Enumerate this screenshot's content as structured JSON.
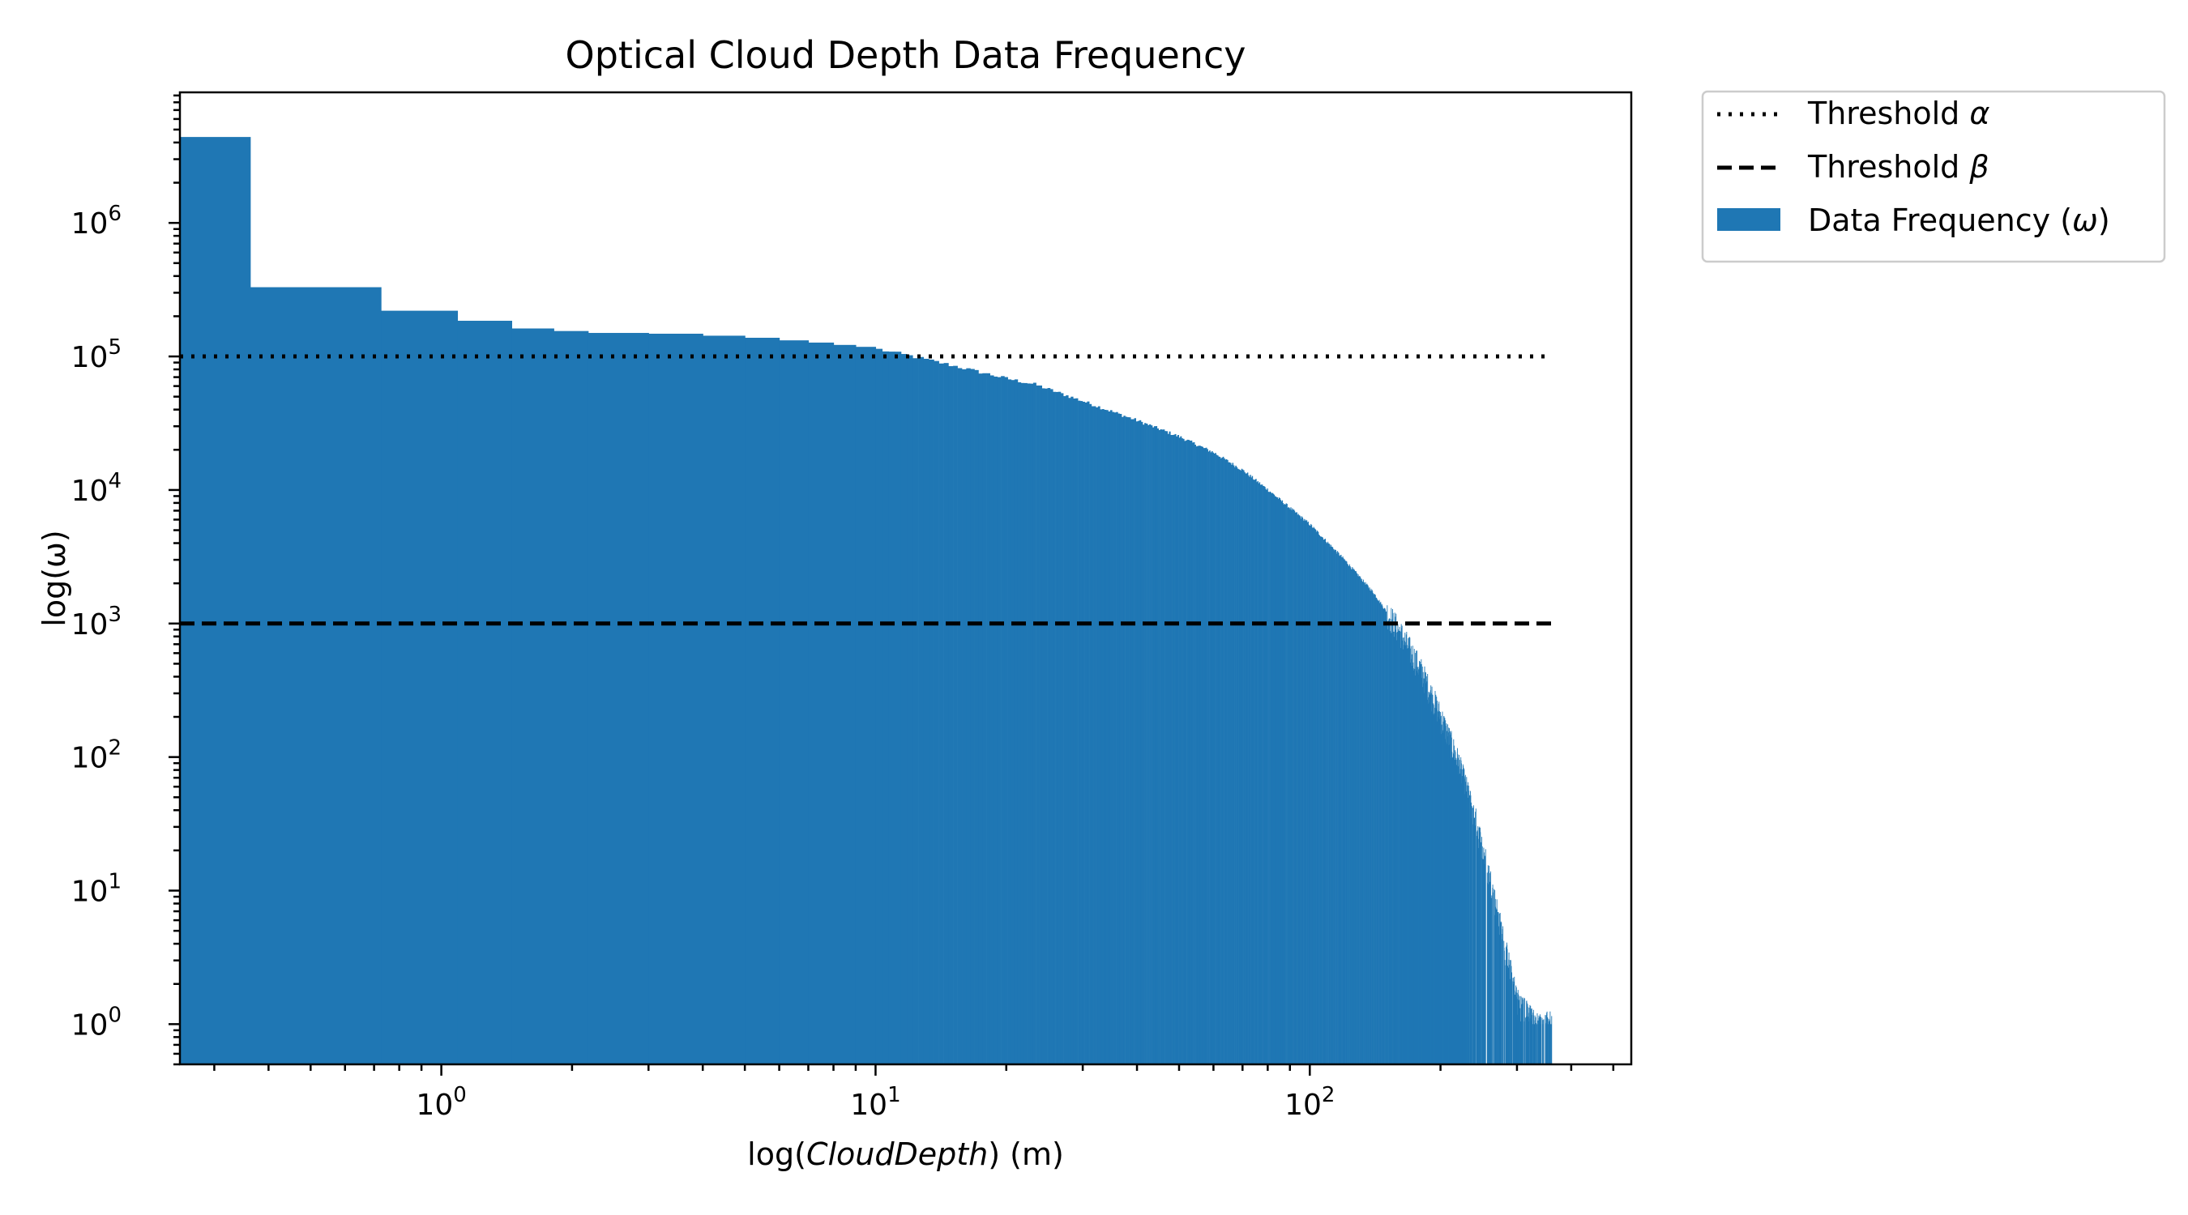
{
  "chart_data": {
    "type": "bar",
    "title": "Optical Cloud Depth Data Frequency",
    "xlabel": {
      "prefix": "log(",
      "italic": "CloudDepth",
      "suffix": ") (m)"
    },
    "ylabel": "log(ω)",
    "x_scale": "log",
    "y_scale": "log",
    "xlim": [
      0.25,
      550
    ],
    "ylim": [
      0.5,
      9500000
    ],
    "x_major_ticks": [
      {
        "value": 1,
        "base": "10",
        "exp": "0"
      },
      {
        "value": 10,
        "base": "10",
        "exp": "1"
      },
      {
        "value": 100,
        "base": "10",
        "exp": "2"
      }
    ],
    "y_major_ticks": [
      {
        "value": 1,
        "base": "10",
        "exp": "0"
      },
      {
        "value": 10,
        "base": "10",
        "exp": "1"
      },
      {
        "value": 100,
        "base": "10",
        "exp": "2"
      },
      {
        "value": 1000,
        "base": "10",
        "exp": "3"
      },
      {
        "value": 10000,
        "base": "10",
        "exp": "4"
      },
      {
        "value": 100000,
        "base": "10",
        "exp": "5"
      },
      {
        "value": 1000000,
        "base": "10",
        "exp": "6"
      }
    ],
    "grid": false,
    "legend_placement": "outside-top-right",
    "bar_color": "#1f77b4",
    "bin_width": 0.363,
    "histogram_shape": {
      "first_bins": [
        [
          0.25,
          4400000
        ],
        [
          0.363,
          330000
        ],
        [
          0.726,
          220000
        ],
        [
          1.089,
          185000
        ],
        [
          1.452,
          162000
        ],
        [
          1.815,
          155000
        ],
        [
          2.178,
          150000
        ],
        [
          3.0,
          148000
        ],
        [
          4.0,
          143000
        ],
        [
          5.0,
          138000
        ],
        [
          6.0,
          132000
        ],
        [
          7.0,
          127000
        ],
        [
          8.0,
          122000
        ],
        [
          9.0,
          118000
        ],
        [
          10.0,
          113000
        ]
      ],
      "envelope": [
        [
          10,
          113000
        ],
        [
          12,
          100000
        ],
        [
          15,
          85000
        ],
        [
          20,
          68000
        ],
        [
          23,
          62000
        ],
        [
          30,
          46000
        ],
        [
          40,
          33000
        ],
        [
          50,
          25000
        ],
        [
          60,
          19000
        ],
        [
          70,
          14000
        ],
        [
          80,
          10000
        ],
        [
          100,
          5500
        ],
        [
          120,
          3000
        ],
        [
          140,
          1700
        ],
        [
          160,
          900
        ],
        [
          180,
          450
        ],
        [
          200,
          200
        ],
        [
          220,
          90
        ],
        [
          240,
          35
        ],
        [
          260,
          12
        ],
        [
          280,
          4
        ],
        [
          300,
          1.5
        ],
        [
          330,
          1
        ],
        [
          360,
          1
        ]
      ]
    },
    "series": [
      {
        "name": "Threshold α",
        "kind": "line",
        "style": "dotted",
        "y": 100000,
        "x_range": [
          0.25,
          360
        ],
        "color": "#000000"
      },
      {
        "name": "Threshold β",
        "kind": "line",
        "style": "dashed",
        "y": 1000,
        "x_range": [
          0.25,
          360
        ],
        "color": "#000000"
      },
      {
        "name": "Data Frequency (ω)",
        "kind": "histogram",
        "color": "#1f77b4"
      }
    ],
    "legend": [
      {
        "label_prefix": "Threshold ",
        "label_symbol": "α",
        "label_suffix": "",
        "style": "dotted"
      },
      {
        "label_prefix": "Threshold ",
        "label_symbol": "β",
        "label_suffix": "",
        "style": "dashed"
      },
      {
        "label_prefix": "Data Frequency (",
        "label_symbol": "ω",
        "label_suffix": ")",
        "style": "patch"
      }
    ]
  }
}
